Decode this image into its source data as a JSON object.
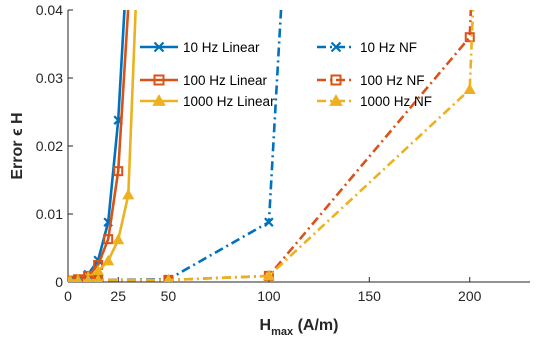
{
  "chart_data": {
    "type": "line",
    "xlabel_main": "H",
    "xlabel_sub": "max",
    "xlabel_unit": " (A/m)",
    "ylabel": "Error ϵ H",
    "xlim": [
      0,
      230
    ],
    "ylim": [
      0,
      0.04
    ],
    "xticks": [
      0,
      25,
      50,
      100,
      150,
      200
    ],
    "xtick_labels": [
      "0",
      "25",
      "50",
      "100",
      "150",
      "200"
    ],
    "yticks": [
      0,
      0.01,
      0.02,
      0.03,
      0.04
    ],
    "ytick_labels": [
      "0",
      "0.01",
      "0.02",
      "0.03",
      "0.04"
    ],
    "grid": false,
    "legend_position": "top",
    "series": [
      {
        "name": "10 Hz Linear",
        "color": "#0072BD",
        "dash": "solid",
        "marker": "x",
        "x": [
          1,
          5,
          10,
          15,
          20,
          25,
          30
        ],
        "y": [
          0.0001,
          0.0004,
          0.0011,
          0.0032,
          0.0088,
          0.0238,
          0.05
        ]
      },
      {
        "name": "100 Hz Linear",
        "color": "#D95319",
        "dash": "solid",
        "marker": "square",
        "x": [
          1,
          5,
          10,
          15,
          20,
          25,
          32
        ],
        "y": [
          0.0001,
          0.0004,
          0.0009,
          0.0025,
          0.0063,
          0.0163,
          0.05
        ]
      },
      {
        "name": "1000 Hz Linear",
        "color": "#EDB120",
        "dash": "solid",
        "marker": "triangle",
        "x": [
          1,
          5,
          10,
          15,
          20,
          25,
          30,
          35
        ],
        "y": [
          0.0001,
          0.0003,
          0.0007,
          0.0016,
          0.0031,
          0.0062,
          0.0128,
          0.05
        ]
      },
      {
        "name": "10 Hz NF",
        "color": "#0072BD",
        "dash": "dashdot",
        "marker": "x",
        "x": [
          1,
          5,
          10,
          15,
          50,
          100,
          108
        ],
        "y": [
          0.0002,
          0.0002,
          0.0003,
          0.0003,
          0.0004,
          0.0088,
          0.05
        ]
      },
      {
        "name": "100 Hz NF",
        "color": "#D95319",
        "dash": "dashdot",
        "marker": "square",
        "x": [
          1,
          5,
          10,
          15,
          50,
          100,
          200,
          202
        ],
        "y": [
          0.0002,
          0.0002,
          0.0002,
          0.0003,
          0.0003,
          0.0009,
          0.036,
          0.05
        ]
      },
      {
        "name": "1000 Hz NF",
        "color": "#EDB120",
        "dash": "dashdot",
        "marker": "triangle",
        "x": [
          1,
          5,
          10,
          15,
          50,
          100,
          200,
          203
        ],
        "y": [
          0.0002,
          0.0002,
          0.0002,
          0.0003,
          0.0003,
          0.0009,
          0.0283,
          0.05
        ]
      }
    ]
  }
}
